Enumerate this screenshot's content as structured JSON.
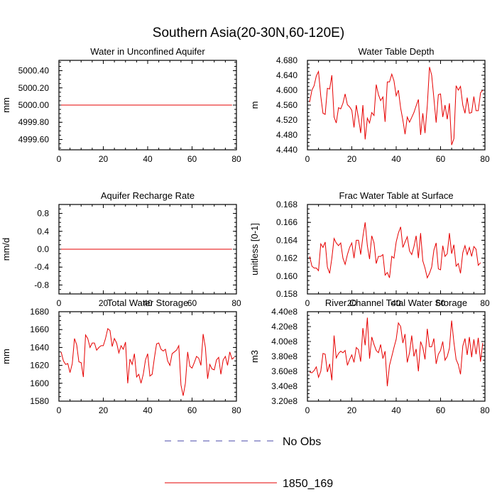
{
  "figure": {
    "title": "Southern Asia(20-30N,60-120E)",
    "legend": [
      {
        "label": "No Obs",
        "color": "#4a4aa8",
        "dash": true
      },
      {
        "label": "1850_169",
        "color": "#e60000",
        "dash": false
      }
    ]
  },
  "chart_data": [
    {
      "type": "line",
      "title": "Water in Unconfined Aquifer",
      "xlabel": "",
      "ylabel": "mm",
      "xlim": [
        0,
        80
      ],
      "ylim": [
        4999.48,
        5000.52
      ],
      "xticks": [
        0,
        20,
        40,
        60,
        80
      ],
      "yticks": [
        4999.6,
        4999.8,
        5000.0,
        5000.2,
        5000.4
      ],
      "ytick_labels": [
        "4999.60",
        "4999.80",
        "5000.00",
        "5000.20",
        "5000.40"
      ],
      "series": [
        {
          "name": "1850_169",
          "color": "#e60000",
          "x_start": 1,
          "x_end": 78,
          "constant": 5000.0
        }
      ]
    },
    {
      "type": "line",
      "title": "Water Table Depth",
      "xlabel": "",
      "ylabel": "m",
      "xlim": [
        0,
        80
      ],
      "ylim": [
        4.44,
        4.68
      ],
      "xticks": [
        0,
        20,
        40,
        60,
        80
      ],
      "yticks": [
        4.44,
        4.48,
        4.52,
        4.56,
        4.6,
        4.64,
        4.68
      ],
      "ytick_labels": [
        "4.440",
        "4.480",
        "4.520",
        "4.560",
        "4.600",
        "4.640",
        "4.680"
      ],
      "series": [
        {
          "name": "1850_169",
          "color": "#e60000",
          "x_start": 1,
          "values": [
            4.568,
            4.6,
            4.612,
            4.638,
            4.65,
            4.584,
            4.538,
            4.535,
            4.605,
            4.603,
            4.64,
            4.528,
            4.512,
            4.553,
            4.55,
            4.565,
            4.59,
            4.561,
            4.555,
            4.546,
            4.5,
            4.56,
            4.525,
            4.485,
            4.56,
            4.468,
            4.525,
            4.512,
            4.54,
            4.532,
            4.615,
            4.588,
            4.572,
            4.582,
            4.515,
            4.622,
            4.622,
            4.643,
            4.625,
            4.585,
            4.6,
            4.552,
            4.52,
            4.482,
            4.528,
            4.514,
            4.527,
            4.54,
            4.558,
            4.575,
            4.48,
            4.538,
            4.485,
            4.558,
            4.662,
            4.64,
            4.578,
            4.513,
            4.588,
            4.59,
            4.528,
            4.56,
            4.522,
            4.565,
            4.453,
            4.47,
            4.612,
            4.6,
            4.61,
            4.56,
            4.538,
            4.58,
            4.538,
            4.54,
            4.583,
            4.545,
            4.545,
            4.593,
            4.6
          ]
        }
      ]
    },
    {
      "type": "line",
      "title": "Aquifer Recharge Rate",
      "xlabel": "",
      "ylabel": "mm/d",
      "xlim": [
        0,
        80
      ],
      "ylim": [
        -1.0,
        1.0
      ],
      "xticks": [
        0,
        20,
        40,
        60,
        80
      ],
      "yticks": [
        -0.8,
        -0.4,
        0.0,
        0.4,
        0.8
      ],
      "ytick_labels": [
        "-0.8",
        "-0.4",
        "0.0",
        "0.4",
        "0.8"
      ],
      "series": [
        {
          "name": "1850_169",
          "color": "#e60000",
          "x_start": 1,
          "x_end": 78,
          "constant": 0.0
        }
      ]
    },
    {
      "type": "line",
      "title": "Frac Water Table at Surface",
      "xlabel": "",
      "ylabel": "unitless [0-1]",
      "xlim": [
        0,
        80
      ],
      "ylim": [
        0.158,
        0.168
      ],
      "xticks": [
        0,
        20,
        40,
        60,
        80
      ],
      "yticks": [
        0.158,
        0.16,
        0.162,
        0.164,
        0.166,
        0.168
      ],
      "ytick_labels": [
        "0.158",
        "0.160",
        "0.162",
        "0.164",
        "0.166",
        "0.168"
      ],
      "series": [
        {
          "name": "1850_169",
          "color": "#e60000",
          "x_start": 1,
          "values": [
            0.1622,
            0.1611,
            0.1609,
            0.1609,
            0.1606,
            0.1636,
            0.1632,
            0.1638,
            0.161,
            0.1603,
            0.162,
            0.1642,
            0.1637,
            0.1634,
            0.1637,
            0.162,
            0.1613,
            0.1624,
            0.1632,
            0.1637,
            0.162,
            0.164,
            0.164,
            0.1624,
            0.1644,
            0.166,
            0.1634,
            0.1619,
            0.1645,
            0.1637,
            0.1614,
            0.1622,
            0.1622,
            0.1624,
            0.1601,
            0.1604,
            0.1598,
            0.1622,
            0.162,
            0.1638,
            0.1648,
            0.1655,
            0.1632,
            0.1638,
            0.1644,
            0.1628,
            0.1624,
            0.1633,
            0.1645,
            0.162,
            0.1648,
            0.1617,
            0.1609,
            0.1598,
            0.1603,
            0.161,
            0.1629,
            0.1637,
            0.1608,
            0.1607,
            0.1634,
            0.1622,
            0.1625,
            0.1648,
            0.1625,
            0.1635,
            0.1611,
            0.1614,
            0.1603,
            0.1626,
            0.1634,
            0.1624,
            0.1632,
            0.1622,
            0.1633,
            0.163,
            0.1612,
            0.1615
          ]
        }
      ]
    },
    {
      "type": "line",
      "title": "Total Water Storage",
      "xlabel": "",
      "ylabel": "mm",
      "xlim": [
        0,
        80
      ],
      "ylim": [
        1580,
        1680
      ],
      "xticks": [
        0,
        20,
        40,
        60,
        80
      ],
      "yticks": [
        1580,
        1600,
        1620,
        1640,
        1660,
        1680
      ],
      "ytick_labels": [
        "1580",
        "1600",
        "1620",
        "1640",
        "1660",
        "1680"
      ],
      "series": [
        {
          "name": "1850_169",
          "color": "#e60000",
          "x_start": 1,
          "values": [
            1635,
            1625,
            1621,
            1622,
            1612,
            1622,
            1650,
            1643,
            1624,
            1623,
            1607,
            1654,
            1650,
            1640,
            1645,
            1645,
            1637,
            1640,
            1642,
            1642,
            1650,
            1661,
            1659,
            1641,
            1650,
            1645,
            1634,
            1642,
            1638,
            1646,
            1600,
            1627,
            1621,
            1633,
            1607,
            1610,
            1600,
            1610,
            1626,
            1633,
            1608,
            1610,
            1628,
            1644,
            1645,
            1638,
            1636,
            1638,
            1625,
            1620,
            1633,
            1635,
            1637,
            1642,
            1598,
            1586,
            1600,
            1635,
            1619,
            1617,
            1623,
            1630,
            1628,
            1620,
            1655,
            1640,
            1605,
            1621,
            1616,
            1615,
            1626,
            1629,
            1610,
            1626,
            1630,
            1620,
            1635,
            1627,
            1629
          ]
        }
      ]
    },
    {
      "type": "line",
      "title": "River Channel Total Water Storage",
      "xlabel": "",
      "ylabel": "m3",
      "xlim": [
        0,
        80
      ],
      "ylim": [
        320000000,
        440000000
      ],
      "xticks": [
        0,
        20,
        40,
        60,
        80
      ],
      "yticks": [
        320000000,
        340000000,
        360000000,
        380000000,
        400000000,
        420000000,
        440000000
      ],
      "ytick_labels": [
        "3.20e8",
        "3.40e8",
        "3.60e8",
        "3.80e8",
        "4.00e8",
        "4.20e8",
        "4.40e8"
      ],
      "series": [
        {
          "name": "1850_169",
          "color": "#e60000",
          "x_start": 1,
          "values": [
            359000000,
            358000000,
            361000000,
            366000000,
            352000000,
            360000000,
            384000000,
            383000000,
            359000000,
            370000000,
            348000000,
            408000000,
            378000000,
            384000000,
            387000000,
            385000000,
            388000000,
            368000000,
            376000000,
            382000000,
            372000000,
            392000000,
            389000000,
            373000000,
            418000000,
            395000000,
            432000000,
            377000000,
            406000000,
            396000000,
            388000000,
            385000000,
            396000000,
            377000000,
            387000000,
            340000000,
            368000000,
            380000000,
            392000000,
            403000000,
            425000000,
            420000000,
            398000000,
            410000000,
            372000000,
            385000000,
            408000000,
            380000000,
            390000000,
            360000000,
            400000000,
            392000000,
            376000000,
            417000000,
            393000000,
            393000000,
            404000000,
            370000000,
            383000000,
            388000000,
            400000000,
            375000000,
            380000000,
            391000000,
            428000000,
            399000000,
            376000000,
            369000000,
            356000000,
            394000000,
            404000000,
            382000000,
            406000000,
            379000000,
            403000000,
            383000000,
            405000000,
            373000000,
            398000000
          ]
        }
      ]
    }
  ]
}
